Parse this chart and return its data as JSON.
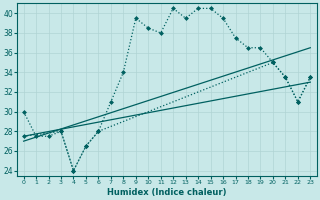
{
  "xlabel": "Humidex (Indice chaleur)",
  "bg_color": "#c8e8e8",
  "grid_color": "#b0d4d4",
  "line_color": "#006060",
  "xlim": [
    -0.5,
    23.5
  ],
  "ylim": [
    23.5,
    41.0
  ],
  "yticks": [
    24,
    26,
    28,
    30,
    32,
    34,
    36,
    38,
    40
  ],
  "xticks": [
    0,
    1,
    2,
    3,
    4,
    5,
    6,
    7,
    8,
    9,
    10,
    11,
    12,
    13,
    14,
    15,
    16,
    17,
    18,
    19,
    20,
    21,
    22,
    23
  ],
  "jagged_x": [
    0,
    1,
    2,
    3,
    4,
    5,
    6,
    7,
    8,
    9,
    10,
    11,
    12,
    13,
    14,
    15,
    16,
    17,
    18,
    19,
    20,
    21,
    22,
    23
  ],
  "jagged_y": [
    30.0,
    27.5,
    27.5,
    28.0,
    24.0,
    26.5,
    28.0,
    31.0,
    34.0,
    39.5,
    38.5,
    38.0,
    40.5,
    39.5,
    40.5,
    40.5,
    39.5,
    37.5,
    36.5,
    36.5,
    35.0,
    33.5,
    31.0,
    33.5
  ],
  "line1_x": [
    0,
    23
  ],
  "line1_y": [
    27.5,
    33.0
  ],
  "line2_x": [
    0,
    23
  ],
  "line2_y": [
    27.0,
    36.5
  ],
  "short_x": [
    0,
    3,
    4,
    5,
    6,
    20,
    21,
    22,
    23
  ],
  "short_y": [
    27.5,
    28.0,
    24.0,
    26.5,
    28.0,
    35.0,
    33.5,
    31.0,
    33.5
  ]
}
